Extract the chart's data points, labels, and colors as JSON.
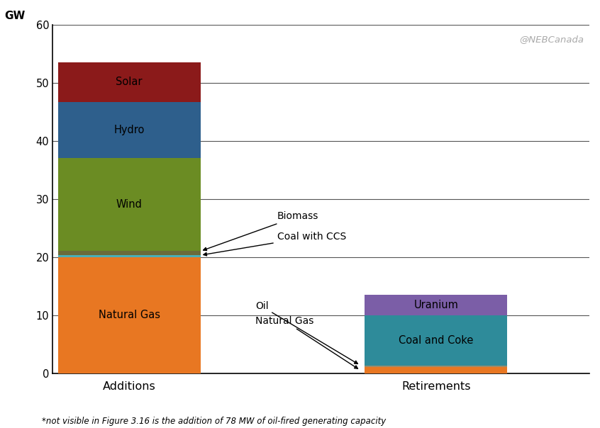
{
  "additions": [
    {
      "label": "Natural Gas",
      "value": 20.0,
      "color": "#E87722"
    },
    {
      "label": "Coal with CCS",
      "value": 0.3,
      "color": "#4AAFB8"
    },
    {
      "label": "Biomass",
      "value": 0.7,
      "color": "#6B6B3A"
    },
    {
      "label": "Wind",
      "value": 16.0,
      "color": "#6B8C23"
    },
    {
      "label": "Hydro",
      "value": 9.7,
      "color": "#2E5F8C"
    },
    {
      "label": "Solar",
      "value": 6.8,
      "color": "#8B1A1A"
    }
  ],
  "retirements": [
    {
      "label": "Natural Gas",
      "value": 1.0,
      "color": "#E87722"
    },
    {
      "label": "Oil",
      "value": 0.35,
      "color": "#9B8B6A"
    },
    {
      "label": "Coal and Coke",
      "value": 8.65,
      "color": "#2E8B9A"
    },
    {
      "label": "Uranium",
      "value": 3.5,
      "color": "#7B5EA7"
    }
  ],
  "ylim": [
    0,
    60
  ],
  "yticks": [
    0,
    10,
    20,
    30,
    40,
    50,
    60
  ],
  "ylabel_top": "GW",
  "bar_width": 0.65,
  "x_additions": 0.3,
  "x_retirements": 1.7,
  "xlim": [
    -0.05,
    2.4
  ],
  "background_color": "#ffffff",
  "grid_color": "#888888",
  "footnote": "*not visible in Figure 3.16 is the addition of 78 MW of oil-fired generating capacity",
  "categories": [
    "Additions",
    "Retirements"
  ],
  "neb_text": "@NEBCanada"
}
